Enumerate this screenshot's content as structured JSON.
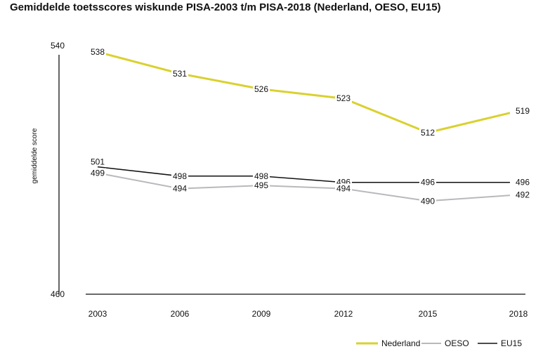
{
  "chart_data": {
    "type": "line",
    "title": "Gemiddelde toetsscores wiskunde PISA-2003 t/m PISA-2018 (Nederland, OESO, EU15)",
    "ylabel": "gemiddelde score",
    "xlabel": "",
    "x": [
      "2003",
      "2006",
      "2009",
      "2012",
      "2015",
      "2018"
    ],
    "ylim": [
      460,
      540
    ],
    "yticks": [
      "540",
      "460"
    ],
    "grid": false,
    "legend_position": "bottom-right",
    "series": [
      {
        "name": "Nederland",
        "color": "#d9d12f",
        "values": [
          538,
          531,
          526,
          523,
          512,
          519
        ],
        "labels": [
          "538",
          "531",
          "526",
          "523",
          "512",
          "519"
        ]
      },
      {
        "name": "OESO",
        "color": "#b9b9bd",
        "values": [
          499,
          494,
          495,
          494,
          490,
          492
        ],
        "labels": [
          "499",
          "494",
          "495",
          "494",
          "490",
          "492"
        ]
      },
      {
        "name": "EU15",
        "color": "#111111",
        "values": [
          501,
          498,
          498,
          496,
          496,
          496
        ],
        "labels": [
          "501",
          "498",
          "498",
          "496",
          "496",
          "496"
        ]
      }
    ]
  }
}
